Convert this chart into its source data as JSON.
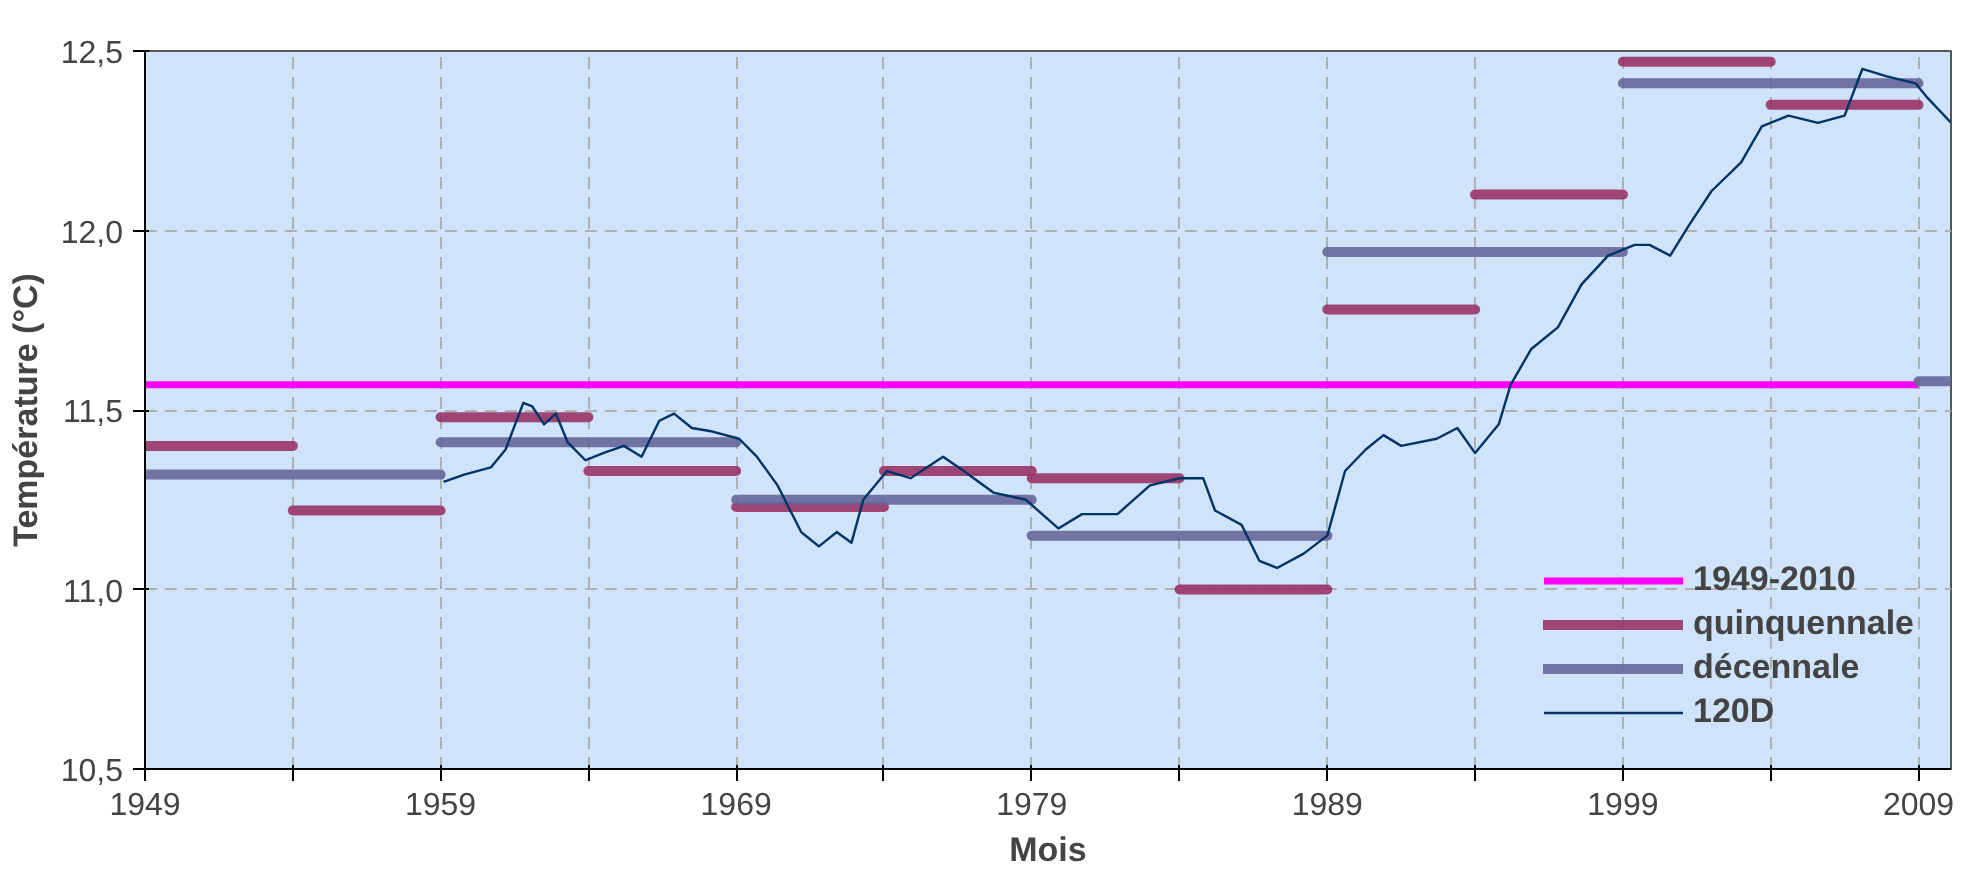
{
  "chart_data": {
    "type": "line",
    "xlabel": "Mois",
    "ylabel": "Température (°C)",
    "xlim": [
      1949,
      2010.1
    ],
    "ylim": [
      10.5,
      12.5
    ],
    "xticks": [
      1949,
      {
        "value": 1954,
        "label": null
      },
      1959,
      {
        "value": 1964,
        "label": null
      },
      1969,
      {
        "value": 1974,
        "label": null
      },
      1979,
      {
        "value": 1984,
        "label": null
      },
      1989,
      {
        "value": 1994,
        "label": null
      },
      1999,
      {
        "value": 2004,
        "label": null
      },
      2009
    ],
    "yticks": [
      {
        "value": 10.5,
        "label": "10,5"
      },
      {
        "value": 11.0,
        "label": "11,0"
      },
      {
        "value": 11.5,
        "label": "11,5"
      },
      {
        "value": 12.0,
        "label": "12,0"
      },
      {
        "value": 12.5,
        "label": "12,5"
      }
    ],
    "grid": true,
    "legend": "bottom right",
    "series": [
      {
        "name": "1949-2010",
        "color": "#ff00ff",
        "x": [
          1949,
          2009
        ],
        "values": [
          11.57,
          11.57
        ]
      },
      {
        "name": "quinquennale",
        "type": "step",
        "color": "#993366",
        "x": [
          1949,
          1954,
          1959,
          1964,
          1969,
          1974,
          1979,
          1984,
          1989,
          1994,
          1999,
          2004,
          2009
        ],
        "values": [
          11.4,
          11.22,
          11.48,
          11.33,
          11.23,
          11.33,
          11.31,
          11.0,
          11.78,
          12.1,
          12.47,
          12.35,
          12.35
        ]
      },
      {
        "name": "décennale",
        "type": "step",
        "color": "#666699",
        "x": [
          1949,
          1959,
          1969,
          1979,
          1989,
          1999,
          2009,
          2010.1
        ],
        "values": [
          11.32,
          11.41,
          11.25,
          11.15,
          11.94,
          12.41,
          11.58,
          11.58
        ]
      },
      {
        "name": "120D",
        "color": "#003366",
        "x": [
          1959.1,
          1959.8,
          1960.7,
          1961.2,
          1961.8,
          1962.1,
          1962.5,
          1962.9,
          1963.3,
          1963.9,
          1964.5,
          1965.2,
          1965.8,
          1966.4,
          1966.9,
          1967.5,
          1968.2,
          1969.1,
          1969.7,
          1970.4,
          1971.2,
          1971.5,
          1971.8,
          1972.4,
          1972.9,
          1973.3,
          1974.1,
          1974.9,
          1976.0,
          1976.7,
          1977.7,
          1978.8,
          1979.9,
          1980.7,
          1981.9,
          1983.0,
          1984.0,
          1984.8,
          1985.2,
          1986.1,
          1986.7,
          1987.3,
          1988.2,
          1989.0,
          1989.6,
          1990.3,
          1990.9,
          1991.5,
          1992.7,
          1993.4,
          1994.0,
          1994.8,
          1995.2,
          1995.9,
          1996.8,
          1997.6,
          1998.5,
          1999.4,
          1999.9,
          2000.6,
          2001.2,
          2002.0,
          2003.0,
          2003.7,
          2004.6,
          2005.6,
          2006.5,
          2007.1,
          2007.9,
          2008.9,
          2009.3,
          2010.1
        ],
        "values": [
          11.3,
          11.32,
          11.34,
          11.39,
          11.52,
          11.51,
          11.46,
          11.49,
          11.41,
          11.36,
          11.38,
          11.4,
          11.37,
          11.47,
          11.49,
          11.45,
          11.44,
          11.42,
          11.37,
          11.29,
          11.16,
          11.14,
          11.12,
          11.16,
          11.13,
          11.25,
          11.33,
          11.31,
          11.37,
          11.33,
          11.27,
          11.25,
          11.17,
          11.21,
          11.21,
          11.29,
          11.31,
          11.31,
          11.22,
          11.18,
          11.08,
          11.06,
          11.1,
          11.15,
          11.33,
          11.39,
          11.43,
          11.4,
          11.42,
          11.45,
          11.38,
          11.46,
          11.57,
          11.67,
          11.73,
          11.85,
          11.93,
          11.96,
          11.96,
          11.93,
          12.01,
          12.11,
          12.19,
          12.29,
          12.32,
          12.3,
          12.32,
          12.45,
          12.43,
          12.41,
          12.37,
          12.3
        ]
      }
    ]
  }
}
